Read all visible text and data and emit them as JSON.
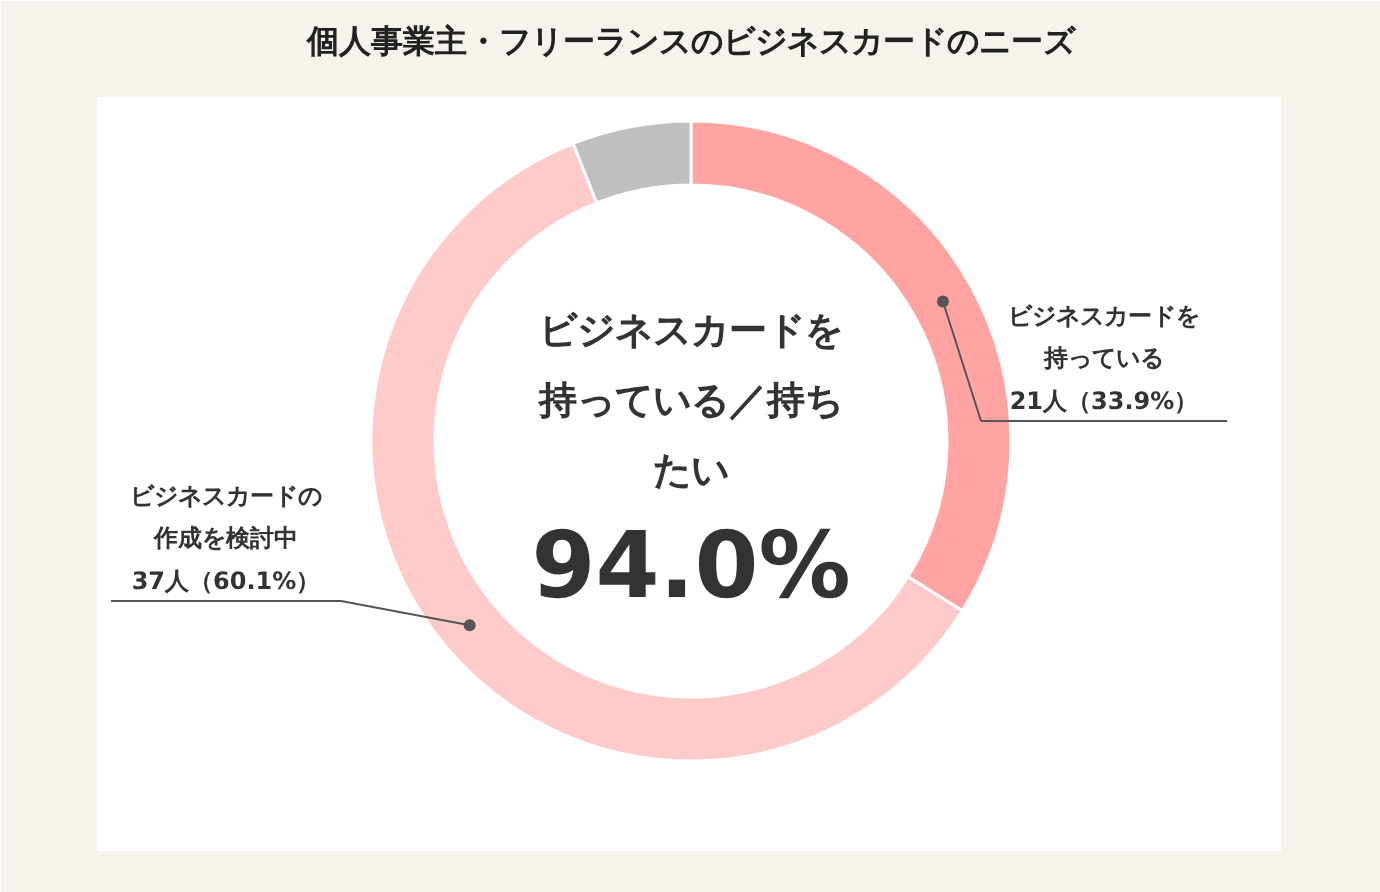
{
  "chart_data": {
    "type": "donut",
    "title": "個人事業主・フリーランスのビジネスカードのニーズ",
    "categories": [
      "ビジネスカードを持っている",
      "ビジネスカードの作成を検討中",
      null
    ],
    "values": [
      33.9,
      60.1,
      6.0
    ],
    "colors": [
      "#ffa3a3",
      "#ffcaca",
      "#bfbfbf"
    ],
    "value_labels": [
      "21人（33.9%）",
      "37人（60.1%）",
      null
    ],
    "annotations": [
      "ビジネスカードを持っている／持ちたい",
      "94.0%"
    ]
  }
}
